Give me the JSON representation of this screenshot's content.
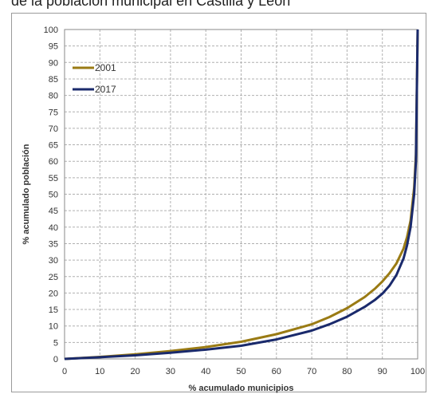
{
  "header": {
    "title": "de la población municipal en Castilla y León"
  },
  "chart_data": {
    "type": "line",
    "title": "de la población municipal en Castilla y León",
    "xlabel": "% acumulado municipios",
    "ylabel": "% acumulado población",
    "xlim": [
      0,
      100
    ],
    "ylim": [
      0,
      100
    ],
    "xticks": [
      0,
      10,
      20,
      30,
      40,
      50,
      60,
      70,
      80,
      90,
      100
    ],
    "yticks": [
      0,
      5,
      10,
      15,
      20,
      25,
      30,
      35,
      40,
      45,
      50,
      55,
      60,
      65,
      70,
      75,
      80,
      85,
      90,
      95,
      100
    ],
    "grid": true,
    "legend_position": "top-left",
    "series": [
      {
        "name": "2001",
        "color": "#9a7b14",
        "x": [
          0,
          10,
          20,
          30,
          40,
          50,
          60,
          70,
          75,
          80,
          85,
          88,
          90,
          92,
          94,
          96,
          97,
          98,
          99,
          99.5,
          100
        ],
        "y": [
          0,
          0.6,
          1.4,
          2.4,
          3.6,
          5.2,
          7.5,
          10.5,
          12.7,
          15.4,
          18.8,
          21.4,
          23.5,
          26,
          29,
          33.5,
          37,
          42,
          52,
          62,
          100
        ]
      },
      {
        "name": "2017",
        "color": "#1a2a6c",
        "x": [
          0,
          10,
          20,
          30,
          40,
          50,
          60,
          70,
          75,
          80,
          85,
          88,
          90,
          92,
          94,
          96,
          97,
          98,
          99,
          99.5,
          100
        ],
        "y": [
          0,
          0.5,
          1.1,
          1.9,
          2.8,
          4,
          5.9,
          8.6,
          10.5,
          12.8,
          15.8,
          18,
          19.8,
          22.2,
          25.5,
          30.5,
          34.5,
          40,
          50,
          60,
          100
        ]
      }
    ]
  }
}
